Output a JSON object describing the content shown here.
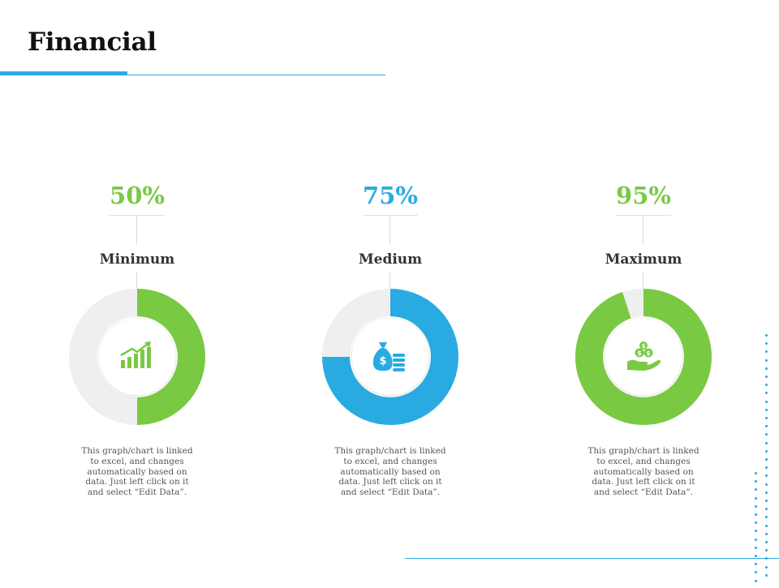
{
  "page": {
    "title": "Financial"
  },
  "colors": {
    "accent_blue": "#29ABE2",
    "accent_green": "#7AC943",
    "track_gray": "#EFEFEF",
    "divider": "#29ABE2"
  },
  "chart_data": [
    {
      "type": "pie",
      "donut": true,
      "label": "Minimum",
      "value_label": "50%",
      "value": 50,
      "max": 100,
      "color": "#7AC943",
      "icon": "growth-chart-icon",
      "description": "This graph/chart is linked to excel, and changes automatically based on data. Just left click on it and select “Edit Data”."
    },
    {
      "type": "pie",
      "donut": true,
      "label": "Medium",
      "value_label": "75%",
      "value": 75,
      "max": 100,
      "color": "#29ABE2",
      "icon": "money-bag-icon",
      "description": "This graph/chart is linked to excel, and changes automatically based on data. Just left click on it and select “Edit Data”."
    },
    {
      "type": "pie",
      "donut": true,
      "label": "Maximum",
      "value_label": "95%",
      "value": 95,
      "max": 100,
      "color": "#7AC943",
      "icon": "hand-coins-icon",
      "description": "This graph/chart is linked to excel, and changes automatically based on data. Just left click on it and select “Edit Data”."
    }
  ]
}
